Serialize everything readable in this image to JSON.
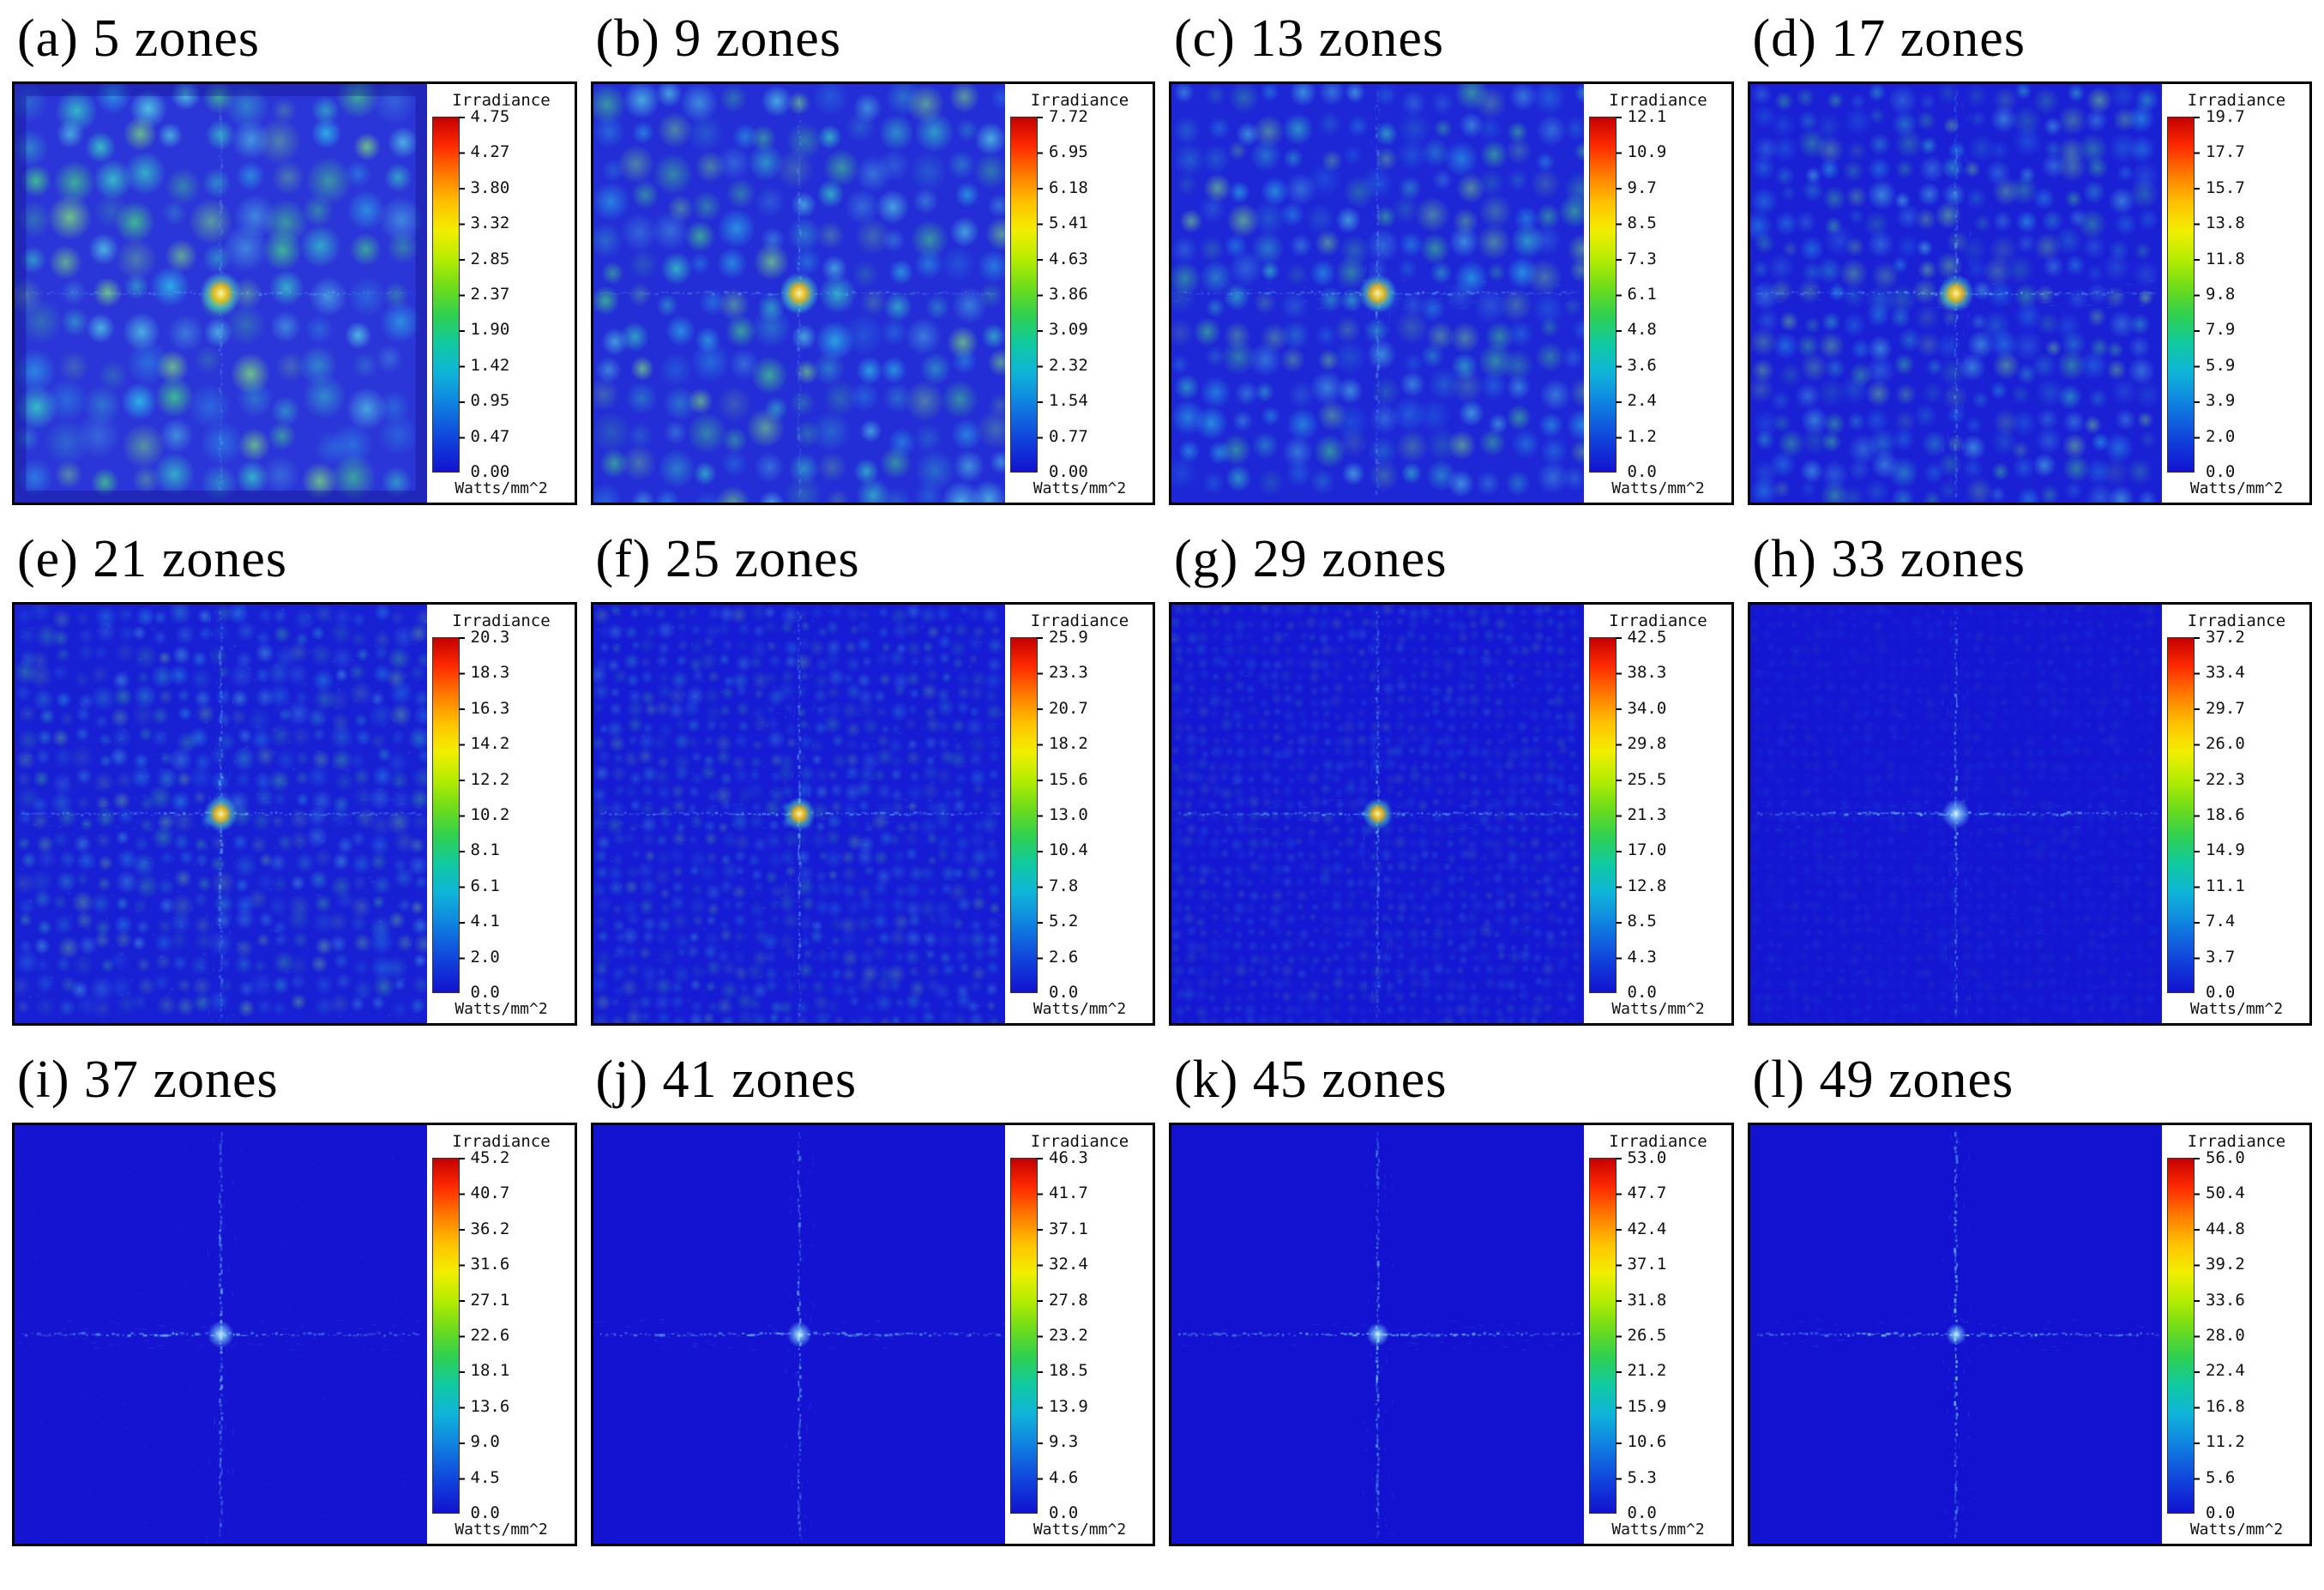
{
  "figure": {
    "panels": [
      {
        "label": "(a)",
        "title": "(a) 5 zones",
        "colorbar_title": "Irradiance",
        "unit": "Watts/mm^2",
        "ticks": [
          "4.75",
          "4.27",
          "3.80",
          "3.32",
          "2.85",
          "2.37",
          "1.90",
          "1.42",
          "0.95",
          "0.47",
          "0.00"
        ]
      },
      {
        "label": "(b)",
        "title": "(b)  9 zones",
        "colorbar_title": "Irradiance",
        "unit": "Watts/mm^2",
        "ticks": [
          "7.72",
          "6.95",
          "6.18",
          "5.41",
          "4.63",
          "3.86",
          "3.09",
          "2.32",
          "1.54",
          "0.77",
          "0.00"
        ]
      },
      {
        "label": "(c)",
        "title": "(c) 13 zones",
        "colorbar_title": "Irradiance",
        "unit": "Watts/mm^2",
        "ticks": [
          "12.1",
          "10.9",
          "9.7",
          "8.5",
          "7.3",
          "6.1",
          "4.8",
          "3.6",
          "2.4",
          "1.2",
          "0.0"
        ]
      },
      {
        "label": "(d)",
        "title": "(d)  17 zones",
        "colorbar_title": "Irradiance",
        "unit": "Watts/mm^2",
        "ticks": [
          "19.7",
          "17.7",
          "15.7",
          "13.8",
          "11.8",
          "9.8",
          "7.9",
          "5.9",
          "3.9",
          "2.0",
          "0.0"
        ]
      },
      {
        "label": "(e)",
        "title": "(e)  21 zones",
        "colorbar_title": "Irradiance",
        "unit": "Watts/mm^2",
        "ticks": [
          "20.3",
          "18.3",
          "16.3",
          "14.2",
          "12.2",
          "10.2",
          "8.1",
          "6.1",
          "4.1",
          "2.0",
          "0.0"
        ]
      },
      {
        "label": "(f)",
        "title": "(f)  25 zones",
        "colorbar_title": "Irradiance",
        "unit": "Watts/mm^2",
        "ticks": [
          "25.9",
          "23.3",
          "20.7",
          "18.2",
          "15.6",
          "13.0",
          "10.4",
          "7.8",
          "5.2",
          "2.6",
          "0.0"
        ]
      },
      {
        "label": "(g)",
        "title": "(g) 29 zones",
        "colorbar_title": "Irradiance",
        "unit": "Watts/mm^2",
        "ticks": [
          "42.5",
          "38.3",
          "34.0",
          "29.8",
          "25.5",
          "21.3",
          "17.0",
          "12.8",
          "8.5",
          "4.3",
          "0.0"
        ]
      },
      {
        "label": "(h)",
        "title": "(h)  33 zones",
        "colorbar_title": "Irradiance",
        "unit": "Watts/mm^2",
        "ticks": [
          "37.2",
          "33.4",
          "29.7",
          "26.0",
          "22.3",
          "18.6",
          "14.9",
          "11.1",
          "7.4",
          "3.7",
          "0.0"
        ]
      },
      {
        "label": "(i)",
        "title": "(i) 37 zones",
        "colorbar_title": "Irradiance",
        "unit": "Watts/mm^2",
        "ticks": [
          "45.2",
          "40.7",
          "36.2",
          "31.6",
          "27.1",
          "22.6",
          "18.1",
          "13.6",
          "9.0",
          "4.5",
          "0.0"
        ]
      },
      {
        "label": "(j)",
        "title": "(j) 41 zones",
        "colorbar_title": "Irradiance",
        "unit": "Watts/mm^2",
        "ticks": [
          "46.3",
          "41.7",
          "37.1",
          "32.4",
          "27.8",
          "23.2",
          "18.5",
          "13.9",
          "9.3",
          "4.6",
          "0.0"
        ]
      },
      {
        "label": "(k)",
        "title": "(k)  45 zones",
        "colorbar_title": "Irradiance",
        "unit": "Watts/mm^2",
        "ticks": [
          "53.0",
          "47.7",
          "42.4",
          "37.1",
          "31.8",
          "26.5",
          "21.2",
          "15.9",
          "10.6",
          "5.3",
          "0.0"
        ]
      },
      {
        "label": "(l)",
        "title": "(l)  49 zones",
        "colorbar_title": "Irradiance",
        "unit": "Watts/mm^2",
        "ticks": [
          "56.0",
          "50.4",
          "44.8",
          "39.2",
          "33.6",
          "28.0",
          "22.4",
          "16.8",
          "11.2",
          "5.6",
          "0.0"
        ]
      }
    ]
  },
  "chart_data": [
    {
      "type": "heatmap",
      "title": "(a) 5 zones",
      "zones": 5,
      "colorbar_label": "Irradiance",
      "unit": "Watts/mm^2",
      "value_range": [
        0,
        4.75
      ],
      "colorbar_ticks": [
        4.75,
        4.27,
        3.8,
        3.32,
        2.85,
        2.37,
        1.9,
        1.42,
        0.95,
        0.47,
        0.0
      ],
      "colormap": "jet",
      "description": "dense grid of bright cyan-green diffraction speckles on blue background with yellow central peak"
    },
    {
      "type": "heatmap",
      "title": "(b) 9 zones",
      "zones": 9,
      "colorbar_label": "Irradiance",
      "unit": "Watts/mm^2",
      "value_range": [
        0,
        7.72
      ],
      "colorbar_ticks": [
        7.72,
        6.95,
        6.18,
        5.41,
        4.63,
        3.86,
        3.09,
        2.32,
        1.54,
        0.77,
        0.0
      ],
      "colormap": "jet",
      "description": "finer speckle grid, yellow central peak"
    },
    {
      "type": "heatmap",
      "title": "(c) 13 zones",
      "zones": 13,
      "colorbar_label": "Irradiance",
      "unit": "Watts/mm^2",
      "value_range": [
        0,
        12.1
      ],
      "colorbar_ticks": [
        12.1,
        10.9,
        9.7,
        8.5,
        7.3,
        6.1,
        4.8,
        3.6,
        2.4,
        1.2,
        0.0
      ],
      "colormap": "jet",
      "description": "fine speckle grid with emerging central cross and yellow peak"
    },
    {
      "type": "heatmap",
      "title": "(d) 17 zones",
      "zones": 17,
      "colorbar_label": "Irradiance",
      "unit": "Watts/mm^2",
      "value_range": [
        0,
        19.7
      ],
      "colorbar_ticks": [
        19.7,
        17.7,
        15.7,
        13.8,
        11.8,
        9.8,
        7.9,
        5.9,
        3.9,
        2.0,
        0.0
      ],
      "colormap": "jet",
      "description": "faint speckles, prominent central cross with yellow peak"
    },
    {
      "type": "heatmap",
      "title": "(e) 21 zones",
      "zones": 21,
      "colorbar_label": "Irradiance",
      "unit": "Watts/mm^2",
      "value_range": [
        0,
        20.3
      ],
      "colorbar_ticks": [
        20.3,
        18.3,
        16.3,
        14.2,
        12.2,
        10.2,
        8.1,
        6.1,
        4.1,
        2.0,
        0.0
      ],
      "colormap": "jet",
      "description": "central cross dominates, faint background texture, orange central peak"
    },
    {
      "type": "heatmap",
      "title": "(f) 25 zones",
      "zones": 25,
      "colorbar_label": "Irradiance",
      "unit": "Watts/mm^2",
      "value_range": [
        0,
        25.9
      ],
      "colorbar_ticks": [
        25.9,
        23.3,
        20.7,
        18.2,
        15.6,
        13.0,
        10.4,
        7.8,
        5.2,
        2.6,
        0.0
      ],
      "colormap": "jet",
      "description": "thin central cross, yellow peak, mostly uniform blue background"
    },
    {
      "type": "heatmap",
      "title": "(g) 29 zones",
      "zones": 29,
      "colorbar_label": "Irradiance",
      "unit": "Watts/mm^2",
      "value_range": [
        0,
        42.5
      ],
      "colorbar_ticks": [
        42.5,
        38.3,
        34.0,
        29.8,
        25.5,
        21.3,
        17.0,
        12.8,
        8.5,
        4.3,
        0.0
      ],
      "colormap": "jet",
      "description": "thin faint cross on uniform blue background"
    },
    {
      "type": "heatmap",
      "title": "(h) 33 zones",
      "zones": 33,
      "colorbar_label": "Irradiance",
      "unit": "Watts/mm^2",
      "value_range": [
        0,
        37.2
      ],
      "colorbar_ticks": [
        37.2,
        33.4,
        29.7,
        26.0,
        22.3,
        18.6,
        14.9,
        11.1,
        7.4,
        3.7,
        0.0
      ],
      "colormap": "jet",
      "description": "thin faint cross with small bright center on uniform blue background"
    },
    {
      "type": "heatmap",
      "title": "(i) 37 zones",
      "zones": 37,
      "colorbar_label": "Irradiance",
      "unit": "Watts/mm^2",
      "value_range": [
        0,
        45.2
      ],
      "colorbar_ticks": [
        45.2,
        40.7,
        36.2,
        31.6,
        27.1,
        22.6,
        18.1,
        13.6,
        9.0,
        4.5,
        0.0
      ],
      "colormap": "jet",
      "description": "sharp thin cross on uniform blue background"
    },
    {
      "type": "heatmap",
      "title": "(j) 41 zones",
      "zones": 41,
      "colorbar_label": "Irradiance",
      "unit": "Watts/mm^2",
      "value_range": [
        0,
        46.3
      ],
      "colorbar_ticks": [
        46.3,
        41.7,
        37.1,
        32.4,
        27.8,
        23.2,
        18.5,
        13.9,
        9.3,
        4.6,
        0.0
      ],
      "colormap": "jet",
      "description": "sharp thin cross on uniform blue background"
    },
    {
      "type": "heatmap",
      "title": "(k) 45 zones",
      "zones": 45,
      "colorbar_label": "Irradiance",
      "unit": "Watts/mm^2",
      "value_range": [
        0,
        53.0
      ],
      "colorbar_ticks": [
        53.0,
        47.7,
        42.4,
        37.1,
        31.8,
        26.5,
        21.2,
        15.9,
        10.6,
        5.3,
        0.0
      ],
      "colormap": "jet",
      "description": "sharp thin cross on uniform blue background"
    },
    {
      "type": "heatmap",
      "title": "(l) 49 zones",
      "zones": 49,
      "colorbar_label": "Irradiance",
      "unit": "Watts/mm^2",
      "value_range": [
        0,
        56.0
      ],
      "colorbar_ticks": [
        56.0,
        50.4,
        44.8,
        39.2,
        33.6,
        28.0,
        22.4,
        16.8,
        11.2,
        5.6,
        0.0
      ],
      "colormap": "jet",
      "description": "sharp thin cross on uniform blue background"
    }
  ]
}
